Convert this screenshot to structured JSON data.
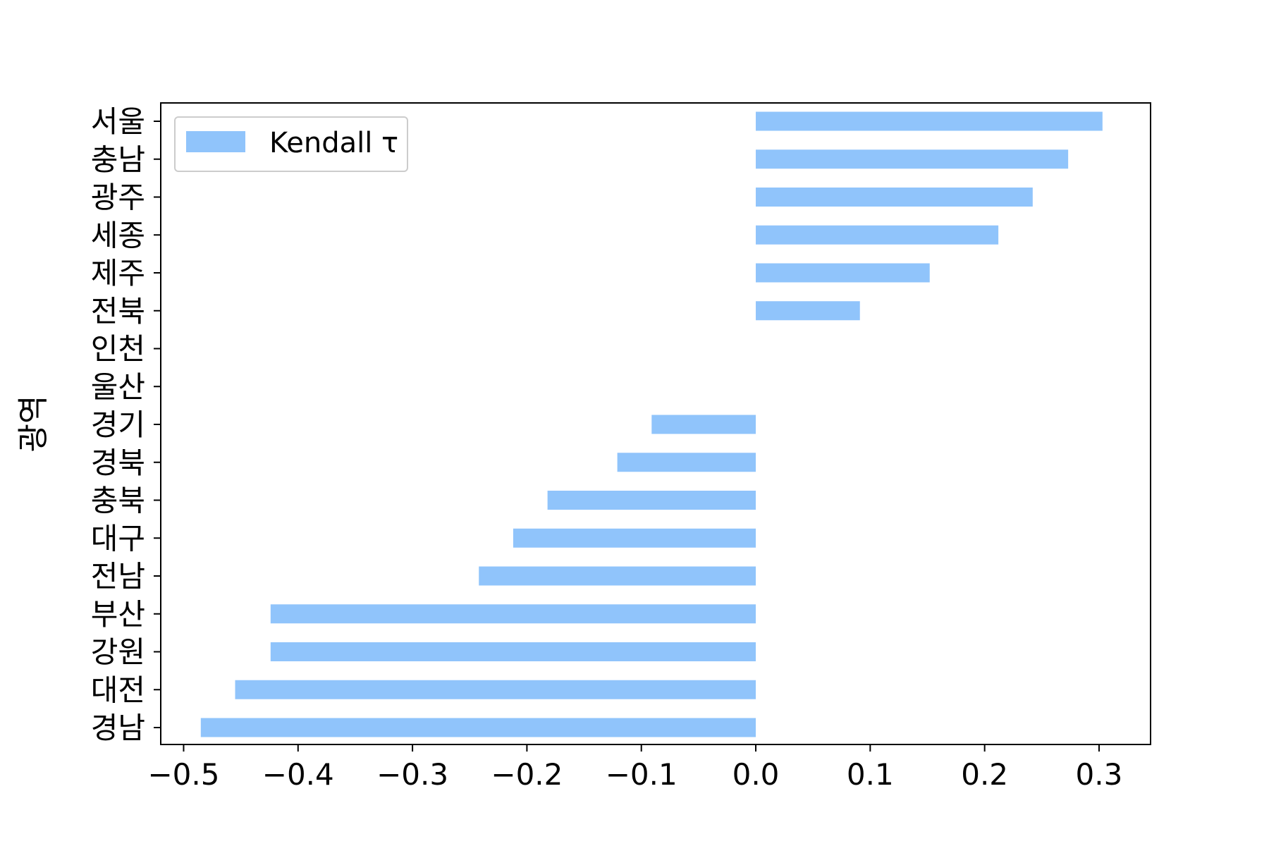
{
  "chart_data": {
    "type": "bar",
    "orientation": "horizontal",
    "ylabel": "광역",
    "xlabel": "",
    "categories": [
      "서울",
      "충남",
      "광주",
      "세종",
      "제주",
      "전북",
      "인천",
      "울산",
      "경기",
      "경북",
      "충북",
      "대구",
      "전남",
      "부산",
      "강원",
      "대전",
      "경남"
    ],
    "series": [
      {
        "name": "Kendall τ",
        "color": "#90c4fb",
        "values": [
          0.303,
          0.273,
          0.242,
          0.212,
          0.152,
          0.091,
          0.0,
          0.0,
          -0.091,
          -0.121,
          -0.182,
          -0.212,
          -0.242,
          -0.424,
          -0.424,
          -0.455,
          -0.485
        ]
      }
    ],
    "xlim": [
      -0.52,
      0.345
    ],
    "xticks": [
      -0.5,
      -0.4,
      -0.3,
      -0.2,
      -0.1,
      0.0,
      0.1,
      0.2,
      0.3
    ],
    "xtick_labels": [
      "−0.5",
      "−0.4",
      "−0.3",
      "−0.2",
      "−0.1",
      "0.0",
      "0.1",
      "0.2",
      "0.3"
    ],
    "legend_position": "top-left",
    "grid": false
  }
}
